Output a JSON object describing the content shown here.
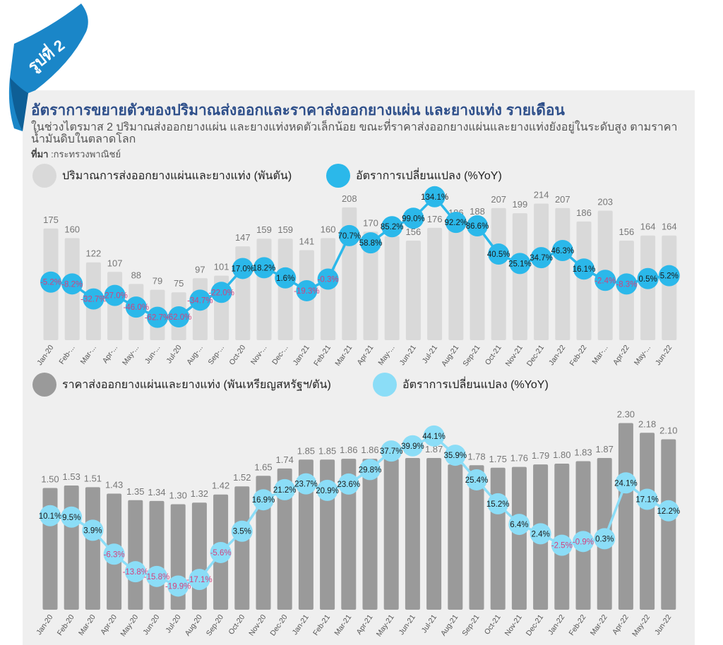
{
  "figure_tag": "รูปที่ 2",
  "title": "อัตราการขยายตัวของปริมาณส่งออกและราคาส่งออกยางแผ่น และยางแท่ง รายเดือน",
  "subtitle": "ในช่วงไตรมาส 2 ปริมาณส่งออกยางแผ่น และยางแท่งหดตัวเล็กน้อย ขณะที่ราคาส่งออกยางแผ่นและยางแท่งยังอยู่ในระดับสูง ตามราคาน้ำมันดิบในตลาดโลก",
  "source_label": "ที่มา",
  "source_text": " :กระทรวงพาณิชย์",
  "colors": {
    "ribbon": "#1a86c8",
    "title": "#2e4f8a",
    "bar_light": "#d9d9d9",
    "bar_dark": "#9a9a9a",
    "line_blue": "#2bb8ea",
    "line_lightblue": "#8bddf7",
    "neg_label": "#d4407e"
  },
  "chart_data": [
    {
      "type": "bar",
      "legend": [
        "ปริมาณการส่งออกยางแผ่นและยางแท่ง (พันตัน)",
        "อัตราการเปลี่ยนแปลง (%YoY)"
      ],
      "categories": [
        "Jan-20",
        "Feb-20",
        "Mar-20",
        "Apr-20",
        "May-20",
        "Jun-20",
        "Jul-20",
        "Aug-20",
        "Sep-20",
        "Oct-20",
        "Nov-20",
        "Dec-20",
        "Jan-21",
        "Feb-21",
        "Mar-21",
        "Apr-21",
        "May-21",
        "Jun-21",
        "Jul-21",
        "Aug-21",
        "Sep-21",
        "Oct-21",
        "Nov-21",
        "Dec-21",
        "Jan-22",
        "Feb-22",
        "Mar-22",
        "Apr-22",
        "May-22",
        "Jun-22"
      ],
      "tick_labels": [
        "Jan-20",
        "Feb-...",
        "Mar-...",
        "Apr-...",
        "May-...",
        "Jun-...",
        "Jul-20",
        "Aug-...",
        "Sep-...",
        "Oct-20",
        "Nov-...",
        "Dec-...",
        "Jan-21",
        "Feb-21",
        "Mar-21",
        "Apr-21",
        "May-...",
        "Jun-21",
        "Jul-21",
        "Aug-21",
        "Sep-21",
        "Oct-21",
        "Nov-21",
        "Dec-21",
        "Jan-22",
        "Feb-22",
        "Mar-...",
        "Apr-22",
        "May-...",
        "Jun-22"
      ],
      "series": [
        {
          "name": "ปริมาณการส่งออกยางแผ่นและยางแท่ง (พันตัน)",
          "kind": "bar",
          "values": [
            175,
            160,
            122,
            107,
            88,
            79,
            75,
            97,
            101,
            147,
            159,
            159,
            141,
            160,
            208,
            170,
            163,
            156,
            176,
            186,
            188,
            207,
            199,
            214,
            207,
            186,
            203,
            156,
            164,
            164
          ],
          "labels": [
            "175",
            "160",
            "122",
            "107",
            "88",
            "79",
            "75",
            "97",
            "101",
            "147",
            "159",
            "159",
            "141",
            "160",
            "208",
            "170",
            "163",
            "156",
            "176",
            "186",
            "188",
            "207",
            "199",
            "214",
            "207",
            "186",
            "203",
            "156",
            "164",
            "164"
          ]
        },
        {
          "name": "อัตราการเปลี่ยนแปลง (%YoY)",
          "kind": "line",
          "values": [
            -5.2,
            -8.2,
            -32.7,
            -27.0,
            -46.0,
            -62.7,
            -62.0,
            -34.7,
            -22.0,
            17.0,
            18.2,
            1.6,
            -19.3,
            -0.3,
            70.7,
            58.8,
            85.2,
            99.0,
            134.1,
            92.2,
            86.6,
            40.5,
            25.1,
            34.7,
            46.3,
            16.1,
            -2.4,
            -8.3,
            0.5,
            5.2
          ],
          "labels": [
            "-5.2%",
            "-8.2%",
            "-32.7%",
            "-27.0%",
            "-46.0%",
            "-62.7%",
            "-62.0%",
            "-34.7%",
            "-22.0%",
            "17.0%",
            "18.2%",
            "1.6%",
            "-19.3%",
            "-0.3%",
            "70.7%",
            "58.8%",
            "85.2%",
            "99.0%",
            "134.1%",
            "92.2%",
            "86.6%",
            "40.5%",
            "25.1%",
            "34.7%",
            "46.3%",
            "16.1%",
            "-2.4%",
            "-8.3%",
            "0.5%",
            "5.2%"
          ]
        }
      ],
      "bar_ylim": [
        0,
        240
      ],
      "line_ylim": [
        -100,
        150
      ]
    },
    {
      "type": "bar",
      "legend": [
        "ราคาส่งออกยางแผ่นและยางแท่ง (พันเหรียญสหรัฐฯ/ตัน)",
        "อัตราการเปลี่ยนแปลง (%YoY)"
      ],
      "categories": [
        "Jan-20",
        "Feb-20",
        "Mar-20",
        "Apr-20",
        "May-20",
        "Jun-20",
        "Jul-20",
        "Aug-20",
        "Sep-20",
        "Oct-20",
        "Nov-20",
        "Dec-20",
        "Jan-21",
        "Feb-21",
        "Mar-21",
        "Apr-21",
        "May-21",
        "Jun-21",
        "Jul-21",
        "Aug-21",
        "Sep-21",
        "Oct-21",
        "Nov-21",
        "Dec-21",
        "Jan-22",
        "Feb-22",
        "Mar-22",
        "Apr-22",
        "May-22",
        "Jun-22"
      ],
      "tick_labels": [
        "Jan-20",
        "Feb-20",
        "Mar-20",
        "Apr-20",
        "May-20",
        "Jun-20",
        "Jul-20",
        "Aug-20",
        "Sep-20",
        "Oct-20",
        "Nov-20",
        "Dec-20",
        "Jan-21",
        "Feb-21",
        "Mar-21",
        "Apr-21",
        "May-21",
        "Jun-21",
        "Jul-21",
        "Aug-21",
        "Sep-21",
        "Oct-21",
        "Nov-21",
        "Dec-21",
        "Jan-22",
        "Feb-22",
        "Mar-22",
        "Apr-22",
        "May-22",
        "Jun-22"
      ],
      "series": [
        {
          "name": "ราคาส่งออกยางแผ่นและยางแท่ง (พันเหรียญสหรัฐฯ/ตัน)",
          "kind": "bar",
          "values": [
            1.5,
            1.53,
            1.51,
            1.43,
            1.35,
            1.34,
            1.3,
            1.32,
            1.42,
            1.52,
            1.65,
            1.74,
            1.85,
            1.85,
            1.86,
            1.86,
            1.86,
            1.87,
            1.87,
            1.79,
            1.78,
            1.75,
            1.76,
            1.79,
            1.8,
            1.83,
            1.87,
            2.3,
            2.18,
            2.1
          ],
          "labels": [
            "1.50",
            "1.53",
            "1.51",
            "1.43",
            "1.35",
            "1.34",
            "1.30",
            "1.32",
            "1.42",
            "1.52",
            "1.65",
            "1.74",
            "1.85",
            "1.85",
            "1.86",
            "1.86",
            "1.86",
            "1.87",
            "1.87",
            "1.79",
            "1.78",
            "1.75",
            "1.76",
            "1.79",
            "1.80",
            "1.83",
            "1.87",
            "2.30",
            "2.18",
            "2.10"
          ]
        },
        {
          "name": "อัตราการเปลี่ยนแปลง (%YoY)",
          "kind": "line",
          "values": [
            10.1,
            9.5,
            3.9,
            -6.3,
            -13.8,
            -15.8,
            -19.9,
            -17.1,
            -5.6,
            3.5,
            16.9,
            21.2,
            23.7,
            20.9,
            23.6,
            29.8,
            37.7,
            39.9,
            44.1,
            35.9,
            25.4,
            15.2,
            6.4,
            2.4,
            -2.5,
            -0.9,
            0.3,
            24.1,
            17.1,
            12.2
          ],
          "labels": [
            "10.1%",
            "9.5%",
            "3.9%",
            "-6.3%",
            "-13.8%",
            "-15.8%",
            "-19.9%",
            "-17.1%",
            "-5.6%",
            "3.5%",
            "16.9%",
            "21.2%",
            "23.7%",
            "20.9%",
            "23.6%",
            "29.8%",
            "37.7%",
            "39.9%",
            "44.1%",
            "35.9%",
            "25.4%",
            "15.2%",
            "6.4%",
            "2.4%",
            "-2.5%",
            "-0.9%",
            "0.3%",
            "24.1%",
            "17.1%",
            "12.2%"
          ]
        }
      ],
      "bar_ylim": [
        0,
        2.6
      ],
      "line_ylim": [
        -30,
        60
      ]
    }
  ]
}
